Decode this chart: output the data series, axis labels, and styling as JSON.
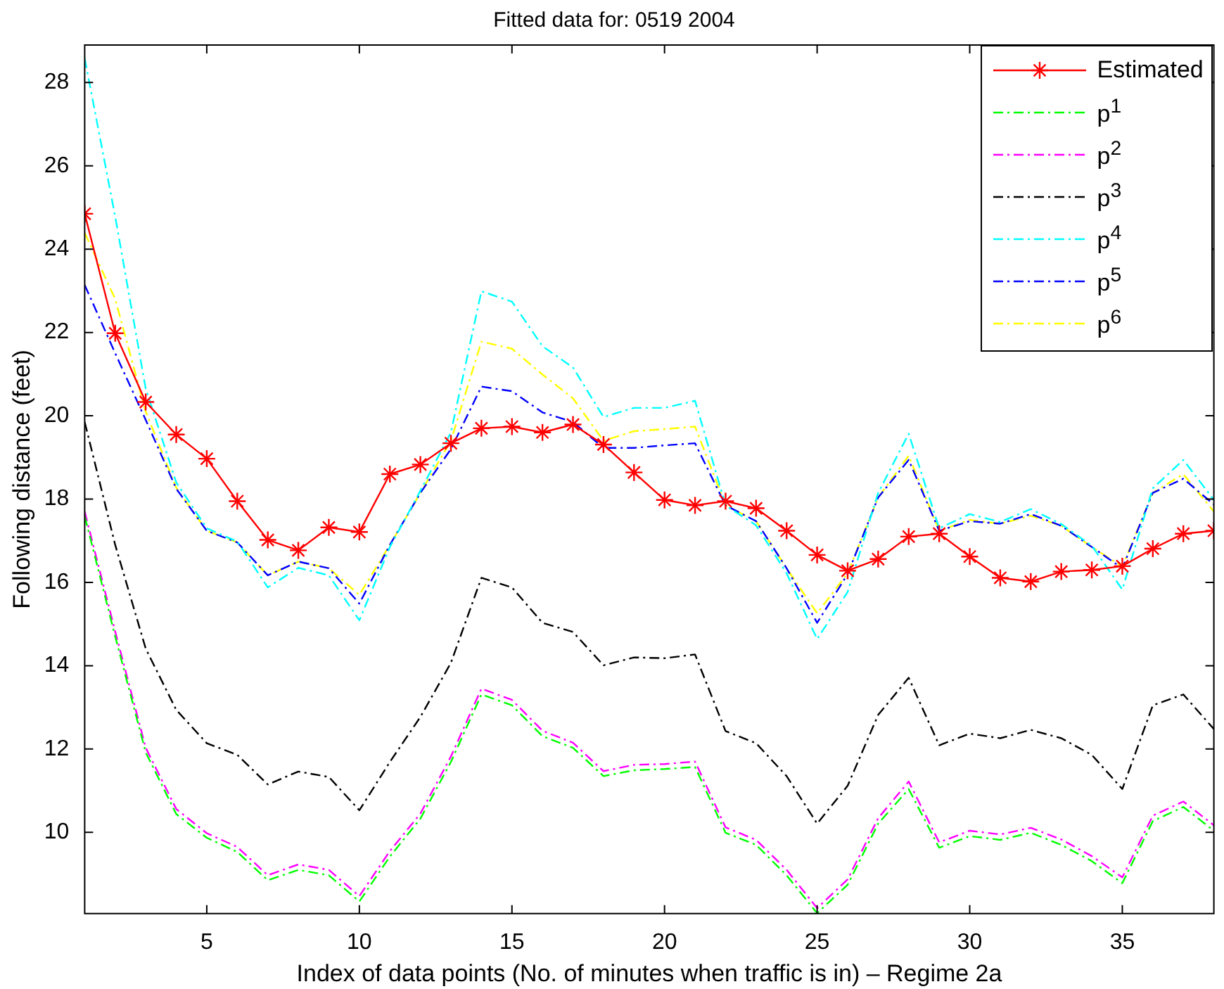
{
  "chart_data": {
    "type": "line",
    "title": "Fitted data for: 0519 2004",
    "xlabel": "Index of data points (No. of minutes when traffic is in) – Regime 2a",
    "ylabel": "Following distance (feet)",
    "x": [
      1,
      2,
      3,
      4,
      5,
      6,
      7,
      8,
      9,
      10,
      11,
      12,
      13,
      14,
      15,
      16,
      17,
      18,
      19,
      20,
      21,
      22,
      23,
      24,
      25,
      26,
      27,
      28,
      29,
      30,
      31,
      32,
      33,
      34,
      35,
      36,
      37,
      38
    ],
    "xlim": [
      1,
      38
    ],
    "xticks": [
      5,
      10,
      15,
      20,
      25,
      30,
      35
    ],
    "ylim": [
      8.05,
      28.9
    ],
    "yticks": [
      10,
      12,
      14,
      16,
      18,
      20,
      22,
      24,
      26,
      28
    ],
    "grid": false,
    "legend": "top right",
    "series": [
      {
        "name": "Estimated",
        "color": "#ff0000",
        "marker": "cross",
        "line_style": "solid",
        "values": [
          24.85,
          21.98,
          20.33,
          19.55,
          18.97,
          17.95,
          17.02,
          16.77,
          17.32,
          17.21,
          18.6,
          18.83,
          19.34,
          19.7,
          19.74,
          19.6,
          19.79,
          19.31,
          18.64,
          17.98,
          17.85,
          17.95,
          17.78,
          17.24,
          16.66,
          16.28,
          16.56,
          17.1,
          17.17,
          16.62,
          16.11,
          16.02,
          16.26,
          16.3,
          16.39,
          16.81,
          17.17,
          17.24
        ]
      },
      {
        "name": "p$^{1}$",
        "color": "#00ff00",
        "marker": "none",
        "line_style": "dashed",
        "values": [
          17.59,
          14.7,
          11.92,
          10.44,
          9.87,
          9.53,
          8.85,
          9.1,
          8.97,
          8.34,
          9.42,
          10.33,
          11.69,
          13.31,
          13.05,
          12.31,
          12.03,
          11.35,
          11.49,
          11.52,
          11.57,
          9.99,
          9.7,
          8.97,
          8.06,
          8.74,
          10.21,
          11.04,
          9.63,
          9.91,
          9.82,
          9.99,
          9.7,
          9.31,
          8.78,
          10.27,
          10.61,
          10.04
        ]
      },
      {
        "name": "p$^{2}$",
        "color": "#ff00ff",
        "marker": "none",
        "line_style": "dashed",
        "values": [
          17.7,
          14.82,
          12.03,
          10.56,
          9.98,
          9.65,
          8.97,
          9.23,
          9.1,
          8.47,
          9.55,
          10.45,
          11.82,
          13.45,
          13.18,
          12.44,
          12.15,
          11.47,
          11.62,
          11.64,
          11.7,
          10.12,
          9.82,
          9.1,
          8.18,
          8.87,
          10.34,
          11.22,
          9.76,
          10.04,
          9.95,
          10.11,
          9.83,
          9.43,
          8.92,
          10.4,
          10.74,
          10.17
        ]
      },
      {
        "name": "p$^{3}$",
        "color": "#000000",
        "marker": "none",
        "line_style": "dashed",
        "values": [
          19.85,
          16.9,
          14.41,
          12.94,
          12.14,
          11.86,
          11.15,
          11.46,
          11.33,
          10.53,
          11.69,
          12.77,
          14.07,
          16.11,
          15.88,
          15.03,
          14.81,
          14.01,
          14.2,
          14.18,
          14.27,
          12.43,
          12.14,
          11.35,
          10.21,
          11.12,
          12.82,
          13.71,
          12.09,
          12.37,
          12.26,
          12.46,
          12.26,
          11.86,
          11.04,
          13.05,
          13.31,
          12.48
        ]
      },
      {
        "name": "p$^{4}$",
        "color": "#00ffff",
        "marker": "none",
        "line_style": "dashed",
        "values": [
          28.58,
          24.78,
          20.65,
          18.4,
          17.3,
          16.98,
          15.88,
          16.35,
          16.17,
          15.09,
          16.85,
          18.2,
          19.6,
          22.99,
          22.74,
          21.67,
          21.16,
          19.97,
          20.19,
          20.19,
          20.36,
          17.85,
          17.37,
          16.22,
          14.64,
          15.77,
          18.15,
          19.57,
          17.3,
          17.64,
          17.45,
          17.76,
          17.4,
          16.88,
          15.83,
          18.26,
          18.94,
          17.98
        ]
      },
      {
        "name": "p$^{5}$",
        "color": "#0000ff",
        "marker": "none",
        "line_style": "dashed",
        "values": [
          23.14,
          21.5,
          19.9,
          18.25,
          17.24,
          16.96,
          16.17,
          16.5,
          16.34,
          15.49,
          16.9,
          18.15,
          19.2,
          20.7,
          20.59,
          20.08,
          19.85,
          19.23,
          19.23,
          19.29,
          19.34,
          17.85,
          17.47,
          16.34,
          15.03,
          16.2,
          18.04,
          18.94,
          17.24,
          17.47,
          17.41,
          17.64,
          17.36,
          16.85,
          16.34,
          18.15,
          18.49,
          17.87
        ]
      },
      {
        "name": "p$^{6}$",
        "color": "#ffff00",
        "marker": "none",
        "line_style": "dashed",
        "values": [
          24.39,
          22.8,
          20.1,
          18.27,
          17.24,
          16.96,
          16.17,
          16.5,
          16.34,
          15.7,
          16.9,
          18.15,
          19.4,
          21.78,
          21.61,
          20.99,
          20.42,
          19.4,
          19.63,
          19.68,
          19.74,
          17.85,
          17.47,
          16.34,
          15.26,
          16.22,
          18.04,
          19.04,
          17.24,
          17.5,
          17.41,
          17.6,
          17.36,
          16.85,
          16.38,
          18.15,
          18.6,
          17.7
        ]
      }
    ]
  }
}
